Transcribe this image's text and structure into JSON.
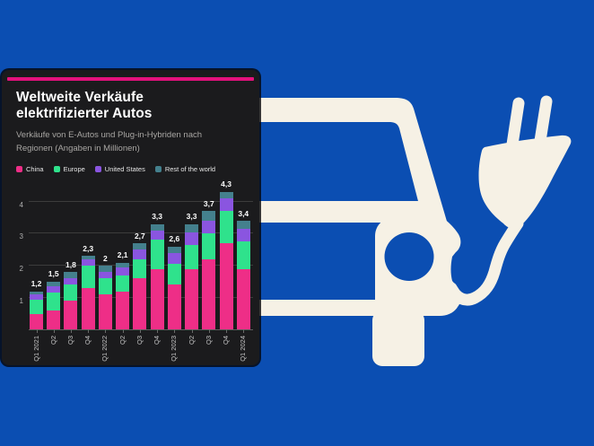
{
  "page": {
    "background_color": "#0b4eb2"
  },
  "pictogram": {
    "name": "electric-car-with-charging-plug",
    "color": "#f6f1e5"
  },
  "card": {
    "background": "#1b1b1d",
    "accent_color": "#e5117d",
    "title": "Weltweite Verkäufe\nelektrifizierter Autos",
    "subtitle": "Verkäufe von E-Autos und Plug-in-Hybriden nach\nRegionen (Angaben in Millionen)"
  },
  "chart_data": {
    "type": "bar",
    "stacked": true,
    "title": "Weltweite Verkäufe elektrifizierter Autos",
    "subtitle": "Verkäufe von E-Autos und Plug-in-Hybriden nach Regionen (Angaben in Millionen)",
    "unit": "Millionen",
    "categories": [
      "Q1 2021",
      "Q2",
      "Q3",
      "Q4",
      "Q1 2022",
      "Q2",
      "Q3",
      "Q4",
      "Q1 2023",
      "Q2",
      "Q3",
      "Q4",
      "Q1 2024"
    ],
    "series": [
      {
        "name": "China",
        "color": "#ee2e87",
        "values": [
          0.5,
          0.6,
          0.9,
          1.3,
          1.1,
          1.2,
          1.6,
          1.9,
          1.4,
          1.9,
          2.2,
          2.7,
          1.9
        ]
      },
      {
        "name": "Europe",
        "color": "#2fe28c",
        "values": [
          0.45,
          0.55,
          0.5,
          0.7,
          0.5,
          0.5,
          0.6,
          0.9,
          0.65,
          0.75,
          0.8,
          1.0,
          0.85
        ]
      },
      {
        "name": "United States",
        "color": "#8a55e0",
        "values": [
          0.15,
          0.2,
          0.2,
          0.2,
          0.2,
          0.25,
          0.3,
          0.3,
          0.35,
          0.4,
          0.4,
          0.4,
          0.4
        ]
      },
      {
        "name": "Rest of the world",
        "color": "#44808d",
        "values": [
          0.1,
          0.15,
          0.2,
          0.1,
          0.2,
          0.15,
          0.2,
          0.2,
          0.2,
          0.25,
          0.3,
          0.2,
          0.25
        ]
      }
    ],
    "totals_labels": [
      "1,2",
      "1,5",
      "1,8",
      "2,3",
      "2",
      "2,1",
      "2,7",
      "3,3",
      "2,6",
      "3,3",
      "3,7",
      "4,3",
      "3,4"
    ],
    "yticks": [
      1,
      2,
      3,
      4
    ],
    "ytick_labels": [
      "1",
      "2",
      "3",
      "4"
    ],
    "ylim": [
      0,
      4.5
    ],
    "grid": true,
    "legend_position": "top",
    "decimal_separator": ","
  }
}
